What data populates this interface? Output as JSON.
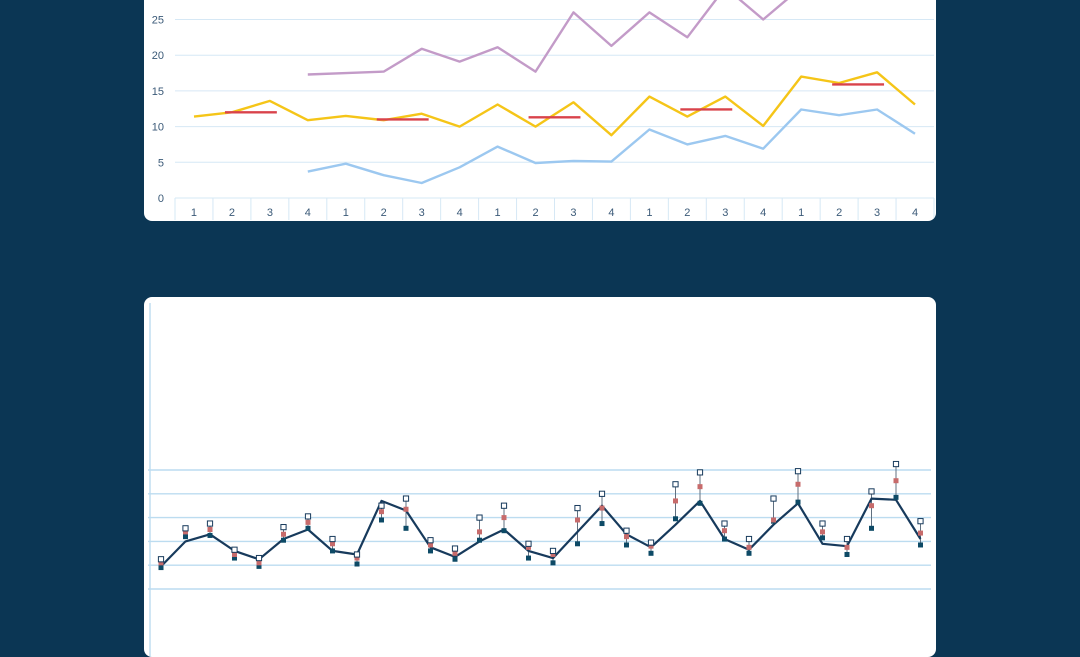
{
  "colors": {
    "background": "#0b3654",
    "card": "#ffffff",
    "grid": "#d6e8f5",
    "series_purple": "#c39bc8",
    "series_yellow": "#f5c518",
    "series_blue": "#9cc8f0",
    "mean_segment": "#d9434b",
    "main_line": "#173a5c",
    "marker_dark": "#0d4a66",
    "marker_red": "#c76b6b",
    "marker_open": "#173a5c",
    "whisker": "#607080"
  },
  "chart_data": [
    {
      "type": "line",
      "title": "",
      "xlabel": "",
      "ylabel": "",
      "ylim": [
        0,
        30
      ],
      "y_ticks": [
        "0",
        "5",
        "10",
        "15",
        "20",
        "25"
      ],
      "categories": [
        "1",
        "2",
        "3",
        "4",
        "1",
        "2",
        "3",
        "4",
        "1",
        "2",
        "3",
        "4",
        "1",
        "2",
        "3",
        "4",
        "1",
        "2",
        "3",
        "4"
      ],
      "grid": true,
      "series": [
        {
          "values": [
            null,
            null,
            null,
            17.3,
            17.5,
            17.7,
            20.9,
            19.1,
            21.1,
            17.7,
            26.0,
            21.3,
            26.0,
            22.5,
            29.5,
            25.0,
            29.5,
            null,
            null,
            null
          ]
        },
        {
          "values": [
            11.4,
            12.0,
            13.6,
            10.9,
            11.5,
            10.9,
            11.8,
            10.0,
            13.1,
            10.0,
            13.4,
            8.8,
            14.2,
            11.4,
            14.2,
            10.1,
            17.0,
            16.1,
            17.6,
            13.1
          ]
        },
        {
          "values": [
            null,
            null,
            null,
            3.7,
            4.8,
            3.2,
            2.1,
            4.3,
            7.2,
            4.9,
            5.2,
            5.1,
            9.6,
            7.5,
            8.7,
            6.9,
            12.4,
            11.6,
            12.4,
            9.0
          ]
        }
      ],
      "annual_means": [
        {
          "x_range": [
            2,
            3
          ],
          "value": 12.0
        },
        {
          "x_range": [
            6,
            7
          ],
          "value": 11.0
        },
        {
          "x_range": [
            10,
            11
          ],
          "value": 11.3
        },
        {
          "x_range": [
            14,
            15
          ],
          "value": 12.4
        },
        {
          "x_range": [
            18,
            19
          ],
          "value": 15.9
        }
      ]
    },
    {
      "type": "line",
      "title": "",
      "xlabel": "",
      "ylabel": "",
      "ylim": [
        0,
        60
      ],
      "y_tick_count": 6,
      "grid": true,
      "n_points": 32,
      "series": [
        {
          "name": "line",
          "values": [
            9.5,
            20.0,
            23.0,
            16.0,
            12.5,
            21.0,
            25.0,
            16.0,
            14.5,
            37.0,
            33.0,
            17.5,
            13.5,
            20.0,
            25.0,
            16.0,
            13.0,
            24.0,
            35.0,
            23.0,
            17.5,
            27.0,
            37.0,
            21.0,
            16.5,
            27.0,
            36.0,
            19.0,
            18.0,
            38.0,
            37.5,
            21.0
          ]
        },
        {
          "name": "dark_marker",
          "values": [
            9.0,
            22.0,
            22.5,
            13.0,
            9.5,
            20.5,
            25.5,
            16.0,
            10.5,
            29.0,
            25.5,
            16.0,
            12.5,
            20.5,
            24.5,
            13.0,
            11.0,
            19.0,
            27.5,
            18.5,
            15.0,
            29.5,
            36.0,
            21.0,
            15.0,
            28.5,
            36.5,
            21.5,
            14.5,
            25.5,
            38.5,
            18.5
          ]
        },
        {
          "name": "red_marker",
          "values": [
            11.0,
            24.0,
            25.0,
            14.5,
            11.0,
            23.0,
            28.0,
            19.0,
            13.0,
            32.5,
            33.5,
            18.5,
            15.0,
            24.0,
            30.0,
            17.5,
            14.5,
            29.0,
            34.0,
            22.0,
            18.0,
            37.0,
            43.0,
            24.5,
            17.5,
            29.0,
            44.0,
            24.0,
            17.5,
            35.0,
            45.5,
            23.5
          ]
        },
        {
          "name": "open_marker",
          "values": [
            12.5,
            25.5,
            27.5,
            16.5,
            13.0,
            26.0,
            30.5,
            21.0,
            14.5,
            35.0,
            38.0,
            20.5,
            17.0,
            30.0,
            35.0,
            19.0,
            16.0,
            34.0,
            40.0,
            24.5,
            19.5,
            44.0,
            49.0,
            27.5,
            21.0,
            38.0,
            49.5,
            27.5,
            21.0,
            41.0,
            52.5,
            28.5
          ]
        }
      ]
    }
  ]
}
